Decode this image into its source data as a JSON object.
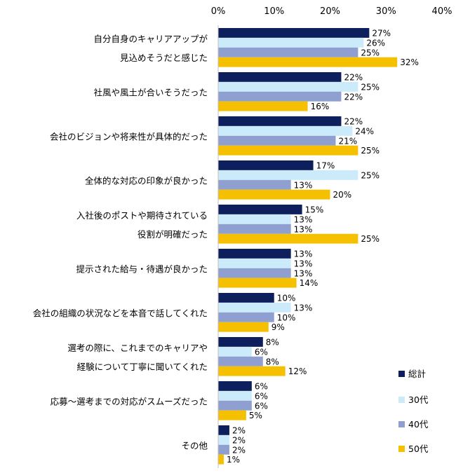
{
  "chart_data": {
    "type": "bar",
    "orientation": "horizontal",
    "categories": [
      [
        "自分自身のキャリアアップが",
        "見込めそうだと感じた"
      ],
      [
        "社風や風土が合いそうだった"
      ],
      [
        "会社のビジョンや将来性が具体的だった"
      ],
      [
        "全体的な対応の印象が良かった"
      ],
      [
        "入社後のポストや期待されている",
        "役割が明確だった"
      ],
      [
        "提示された給与・待遇が良かった"
      ],
      [
        "会社の組織の状況などを本音で話してくれた"
      ],
      [
        "選考の際に、これまでのキャリアや",
        "経験について丁寧に聞いてくれた"
      ],
      [
        "応募～選考までの対応がスムーズだった"
      ],
      [
        "その他"
      ]
    ],
    "series": [
      {
        "name": "総計",
        "color": "#0d1f5c",
        "values": [
          27,
          22,
          22,
          17,
          15,
          13,
          10,
          8,
          6,
          2
        ]
      },
      {
        "name": "30代",
        "color": "#ccebfa",
        "values": [
          26,
          25,
          24,
          25,
          13,
          13,
          13,
          6,
          6,
          2
        ]
      },
      {
        "name": "40代",
        "color": "#8f9fcf",
        "values": [
          25,
          22,
          21,
          13,
          13,
          13,
          10,
          8,
          6,
          2
        ]
      },
      {
        "name": "50代",
        "color": "#f5c000",
        "values": [
          32,
          16,
          25,
          20,
          25,
          14,
          9,
          12,
          5,
          1
        ]
      }
    ],
    "value_suffix": "%",
    "xlim": [
      0,
      40
    ],
    "xticks": [
      "0%",
      "10%",
      "20%",
      "30%",
      "40%"
    ],
    "axis_position": "top",
    "grid": false,
    "legend_position": "bottom-right"
  }
}
